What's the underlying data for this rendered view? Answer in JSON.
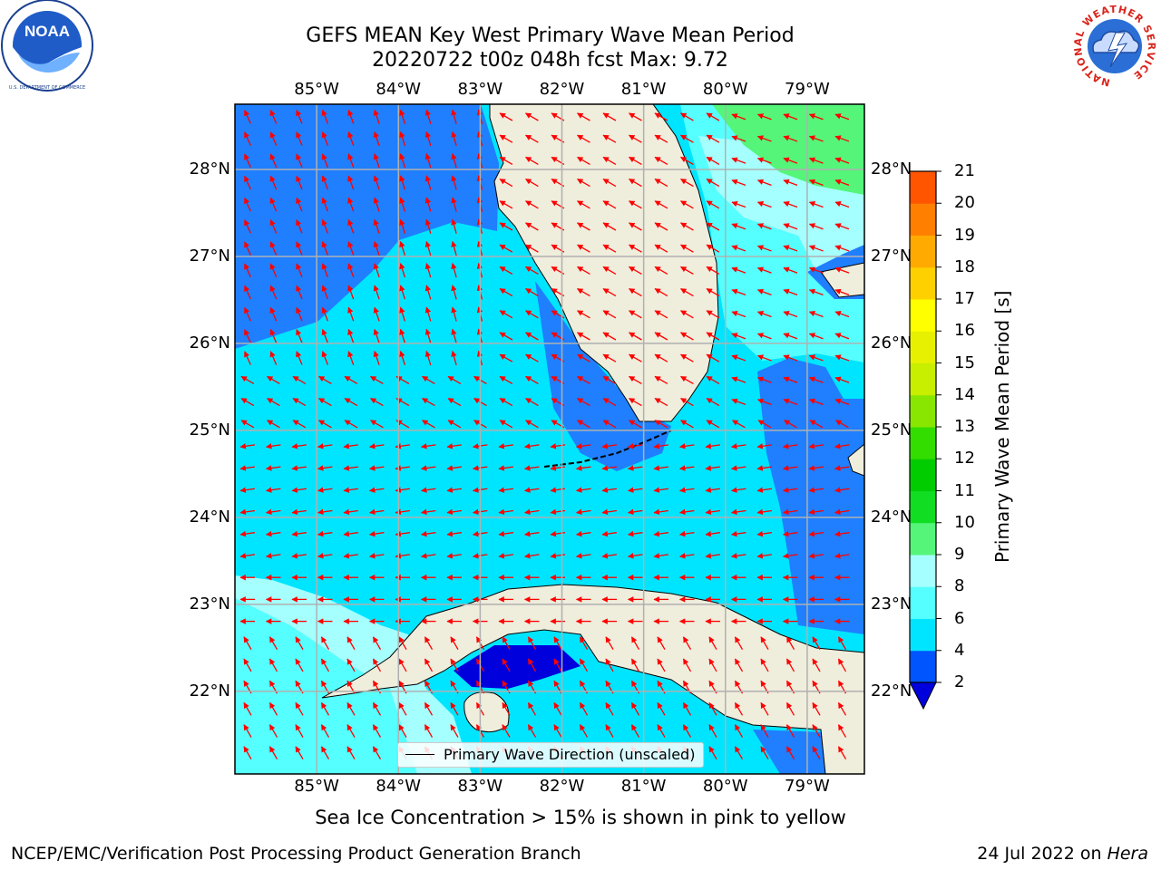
{
  "header": {
    "title_line1": "GEFS MEAN Key West Primary Wave Mean Period",
    "title_line2": "20220722 t00z 048h fcst   Max: 9.72"
  },
  "map": {
    "lon_ticks": [
      "85°W",
      "84°W",
      "83°W",
      "82°W",
      "81°W",
      "80°W",
      "79°W"
    ],
    "lat_ticks": [
      "28°N",
      "27°N",
      "26°N",
      "25°N",
      "24°N",
      "23°N",
      "22°N"
    ],
    "lon_range": [
      -86.0,
      -78.3
    ],
    "lat_range": [
      21.05,
      28.75
    ],
    "grid": true,
    "arrow_color": "#ff0000",
    "land_color": "#efeddc",
    "legend_label": "Primary Wave Direction (unscaled)"
  },
  "colorbar": {
    "label": "Primary Wave Mean Period [s]",
    "ticks": [
      "2",
      "4",
      "6",
      "8",
      "9",
      "10",
      "11",
      "12",
      "13",
      "14",
      "15",
      "16",
      "17",
      "18",
      "19",
      "20",
      "21"
    ],
    "colors": [
      "#0055ff",
      "#00e5ff",
      "#55ffff",
      "#a5ffff",
      "#55f57a",
      "#11dd22",
      "#00cc00",
      "#33dd00",
      "#88e600",
      "#c8ee00",
      "#e6f000",
      "#ffff00",
      "#ffd000",
      "#ffaa00",
      "#ff8000",
      "#ff5500",
      "#ff2200",
      "#ff0000"
    ],
    "under_color": "#0000dd"
  },
  "notes": {
    "ice_note": "Sea Ice Concentration > 15% is shown in pink to yellow"
  },
  "footer": {
    "left": "NCEP/EMC/Verification Post Processing Product Generation Branch",
    "right_prefix": "24 Jul 2022 on ",
    "right_host": "Hera"
  },
  "logos": {
    "noaa_text": "NOAA",
    "noaa_ring_text": "NATIONAL OCEANIC AND ATMOSPHERIC ADMINISTRATION · U.S. DEPARTMENT OF COMMERCE",
    "nws_ring_text": "NATIONAL WEATHER SERVICE"
  }
}
